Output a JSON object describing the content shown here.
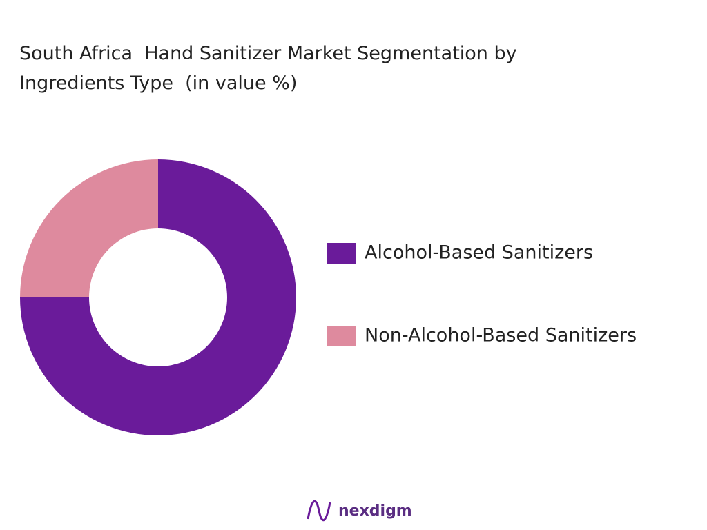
{
  "chart_data": {
    "type": "donut",
    "title": "South Africa  Hand Sanitizer Market Segmentation by Ingredients Type  (in value %)",
    "categories": [
      "Alcohol-Based Sanitizers",
      "Non-Alcohol-Based Sanitizers"
    ],
    "values": [
      75,
      25
    ],
    "colors": [
      "#6a1b9a",
      "#de8a9e"
    ],
    "legend": "right"
  },
  "logo": "nexdigm"
}
